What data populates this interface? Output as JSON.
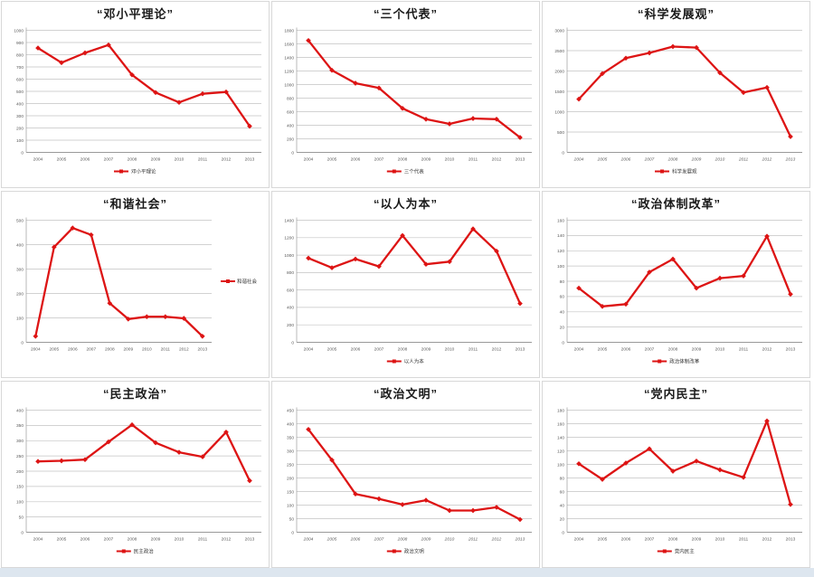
{
  "page": {
    "background": "#ffffff",
    "footer_strip_color": "#dde6ef"
  },
  "style": {
    "line_color": "#dd1414",
    "grid_color": "#c3c3c3",
    "axis_color": "#9a9a9a",
    "tick_label_color": "#595959",
    "legend_text_color": "#333333"
  },
  "chart_data": [
    {
      "type": "line",
      "title": "“邓小平理论”",
      "legend": "邓小平理论",
      "legend_position": "bottom",
      "italic_x_labels": false,
      "categories": [
        "2004",
        "2005",
        "2006",
        "2007",
        "2008",
        "2009",
        "2010",
        "2011",
        "2012",
        "2013"
      ],
      "values": [
        855,
        735,
        815,
        880,
        635,
        490,
        410,
        480,
        495,
        215
      ],
      "ylim": [
        0,
        1000
      ],
      "ystep": 100
    },
    {
      "type": "line",
      "title": "“三个代表”",
      "legend": "三个代表",
      "legend_position": "bottom",
      "italic_x_labels": false,
      "categories": [
        "2004",
        "2005",
        "2006",
        "2007",
        "2008",
        "2009",
        "2010",
        "2011",
        "2012",
        "2013"
      ],
      "values": [
        1650,
        1210,
        1020,
        950,
        650,
        490,
        420,
        500,
        490,
        220
      ],
      "ylim": [
        0,
        1800
      ],
      "ystep": 200
    },
    {
      "type": "line",
      "title": "“科学发展观”",
      "legend": "科学发展观",
      "legend_position": "bottom",
      "italic_x_labels": true,
      "categories": [
        "2004",
        "2005",
        "2006",
        "2007",
        "2008",
        "2009",
        "2010",
        "2011",
        "2012",
        "2013"
      ],
      "values": [
        1310,
        1935,
        2315,
        2445,
        2600,
        2575,
        1955,
        1470,
        1595,
        390
      ],
      "ylim": [
        0,
        3000
      ],
      "ystep": 500
    },
    {
      "type": "line",
      "title": "“和谐社会”",
      "legend": "和谐社会",
      "legend_position": "right",
      "italic_x_labels": false,
      "categories": [
        "2004",
        "2005",
        "2006",
        "2007",
        "2008",
        "2009",
        "2010",
        "2011",
        "2012",
        "2013"
      ],
      "values": [
        25,
        390,
        468,
        440,
        160,
        95,
        105,
        105,
        98,
        25
      ],
      "ylim": [
        0,
        500
      ],
      "ystep": 100
    },
    {
      "type": "line",
      "title": "“以人为本”",
      "legend": "以人为本",
      "legend_position": "bottom",
      "italic_x_labels": false,
      "categories": [
        "2004",
        "2005",
        "2006",
        "2007",
        "2008",
        "2009",
        "2010",
        "2011",
        "2012",
        "2013"
      ],
      "values": [
        965,
        855,
        955,
        870,
        1225,
        895,
        925,
        1300,
        1045,
        445
      ],
      "ylim": [
        0,
        1400
      ],
      "ystep": 200
    },
    {
      "type": "line",
      "title": "“政治体制改革”",
      "legend": "政治体制改革",
      "legend_position": "bottom",
      "italic_x_labels": false,
      "categories": [
        "2004",
        "2005",
        "2006",
        "2007",
        "2008",
        "2009",
        "2010",
        "2011",
        "2012",
        "2013"
      ],
      "values": [
        71,
        47,
        50,
        92,
        109,
        71,
        84,
        87,
        139,
        63
      ],
      "ylim": [
        0,
        160
      ],
      "ystep": 20
    },
    {
      "type": "line",
      "title": "“民主政治”",
      "legend": "民主政治",
      "legend_position": "bottom",
      "italic_x_labels": false,
      "categories": [
        "2004",
        "2005",
        "2006",
        "2007",
        "2008",
        "2009",
        "2010",
        "2011",
        "2012",
        "2013"
      ],
      "values": [
        232,
        234,
        238,
        296,
        352,
        293,
        262,
        247,
        328,
        169
      ],
      "ylim": [
        0,
        400
      ],
      "ystep": 50
    },
    {
      "type": "line",
      "title": "“政治文明”",
      "legend": "政治文明",
      "legend_position": "bottom",
      "italic_x_labels": true,
      "categories": [
        "2004",
        "2005",
        "2006",
        "2007",
        "2008",
        "2009",
        "2010",
        "2011",
        "2012",
        "2013"
      ],
      "values": [
        379,
        266,
        141,
        123,
        102,
        118,
        80,
        80,
        92,
        47
      ],
      "ylim": [
        0,
        450
      ],
      "ystep": 50
    },
    {
      "type": "line",
      "title": "“党内民主”",
      "legend": "党内民主",
      "legend_position": "bottom",
      "italic_x_labels": false,
      "categories": [
        "2004",
        "2005",
        "2006",
        "2007",
        "2008",
        "2009",
        "2010",
        "2011",
        "2012",
        "2013"
      ],
      "values": [
        101,
        78,
        102,
        123,
        90,
        105,
        92,
        81,
        164,
        41
      ],
      "ylim": [
        0,
        180
      ],
      "ystep": 20
    }
  ]
}
